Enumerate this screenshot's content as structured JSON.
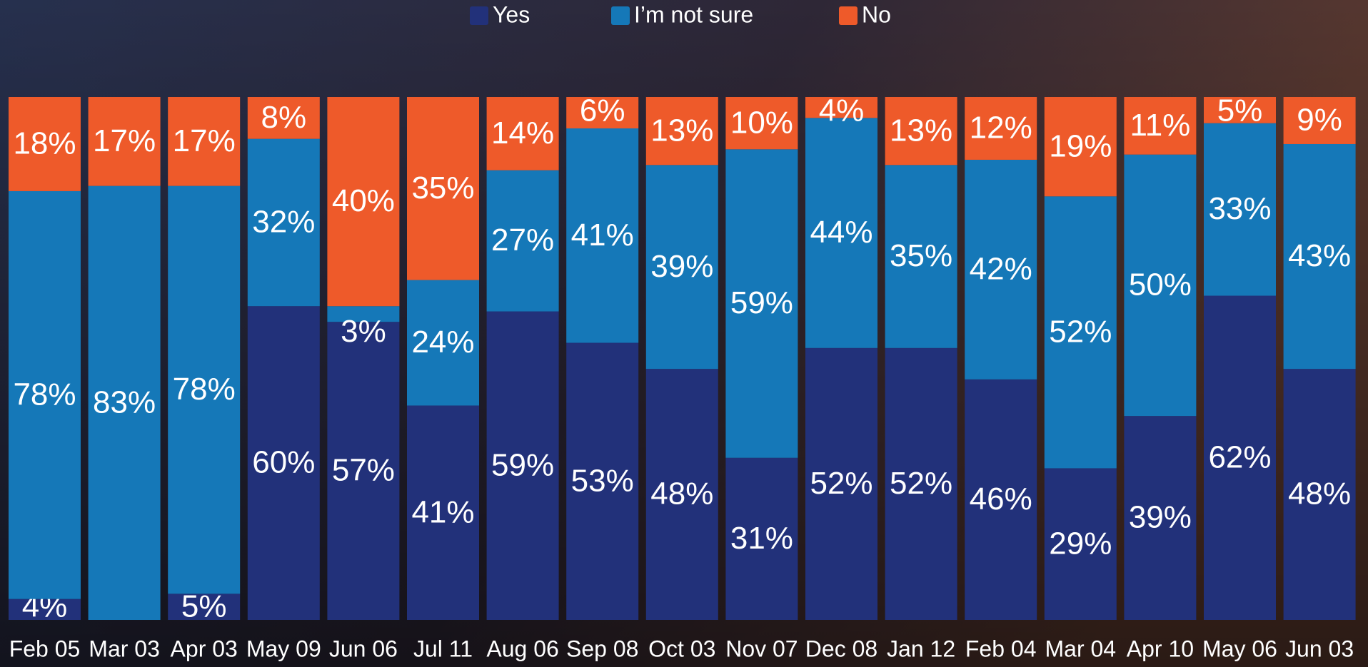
{
  "chart_data": {
    "type": "stacked_bar",
    "categories": [
      "Feb 05",
      "Mar 03",
      "Apr 03",
      "May 09",
      "Jun 06",
      "Jul 11",
      "Aug 06",
      "Sep 08",
      "Oct 03",
      "Nov 07",
      "Dec 08",
      "Jan 12",
      "Feb 04",
      "Mar 04",
      "Apr 10",
      "May 06",
      "Jun 03"
    ],
    "series": [
      {
        "name": "Yes",
        "color": "#22317a",
        "values": [
          4,
          null,
          5,
          60,
          57,
          41,
          59,
          53,
          48,
          31,
          52,
          52,
          46,
          29,
          39,
          62,
          48
        ],
        "value_labels": [
          "4%",
          null,
          "5%",
          "60%",
          "57%",
          "41%",
          "59%",
          "53%",
          "48%",
          "31%",
          "52%",
          "52%",
          "46%",
          "29%",
          "39%",
          "62%",
          "48%"
        ]
      },
      {
        "name": "I’m not sure",
        "color": "#1578b8",
        "values": [
          78,
          83,
          78,
          32,
          3,
          24,
          27,
          41,
          39,
          59,
          44,
          35,
          42,
          52,
          50,
          33,
          43
        ],
        "value_labels": [
          "78%",
          "83%",
          "78%",
          "32%",
          "3%",
          "24%",
          "27%",
          "41%",
          "39%",
          "59%",
          "44%",
          "35%",
          "42%",
          "52%",
          "50%",
          "33%",
          "43%"
        ]
      },
      {
        "name": "No",
        "color": "#ee5a2a",
        "values": [
          18,
          17,
          17,
          8,
          40,
          35,
          14,
          6,
          13,
          10,
          4,
          13,
          12,
          19,
          11,
          5,
          9
        ],
        "value_labels": [
          "18%",
          "17%",
          "17%",
          "8%",
          "40%",
          "35%",
          "14%",
          "6%",
          "13%",
          "10%",
          "4%",
          "13%",
          "12%",
          "19%",
          "11%",
          "5%",
          "9%"
        ]
      }
    ],
    "ylim": [
      0,
      100
    ],
    "legend": "top"
  }
}
